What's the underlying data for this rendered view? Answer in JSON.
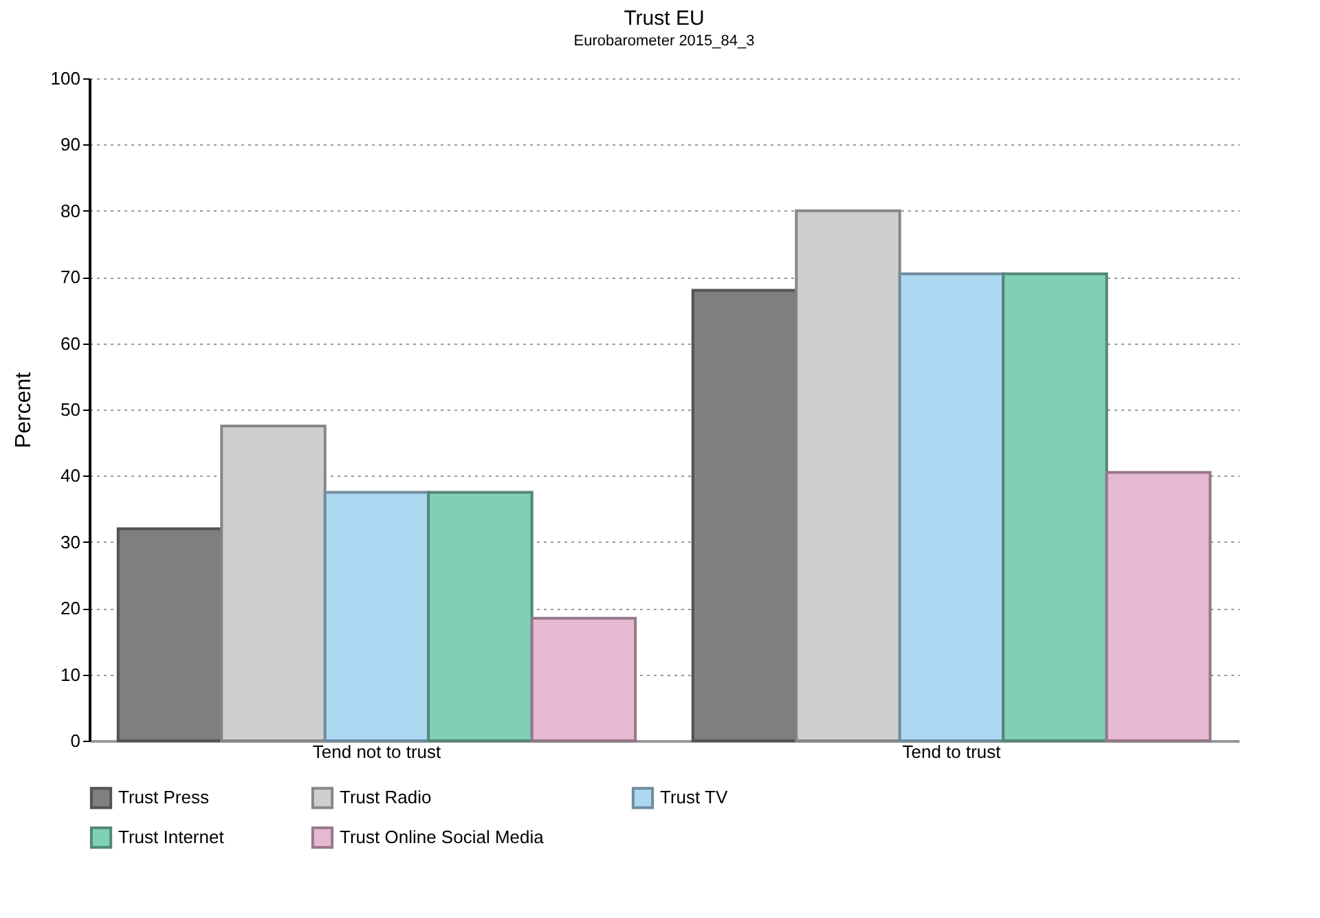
{
  "chart_data": {
    "type": "bar",
    "title": "Trust EU",
    "subtitle": "Eurobarometer 2015_84_3",
    "ylabel": "Percent",
    "categories": [
      "Tend not to trust",
      "Tend to trust"
    ],
    "series": [
      {
        "name": "Trust Press",
        "color": "#7f7f7f",
        "values": [
          32,
          68
        ]
      },
      {
        "name": "Trust Radio",
        "color": "#cfcfcf",
        "values": [
          47.5,
          80
        ]
      },
      {
        "name": "Trust TV",
        "color": "#acd8f2",
        "values": [
          37.5,
          70.5
        ]
      },
      {
        "name": "Trust Internet",
        "color": "#80d0b8",
        "values": [
          37.5,
          70.5
        ]
      },
      {
        "name": "Trust Online Social Media",
        "color": "#e5b9d2",
        "values": [
          18.5,
          40.5
        ]
      }
    ],
    "ylim": [
      0,
      100
    ],
    "yticks": [
      0,
      10,
      20,
      30,
      40,
      50,
      60,
      70,
      80,
      90,
      100
    ],
    "grid": "y",
    "legend": "bottom"
  }
}
